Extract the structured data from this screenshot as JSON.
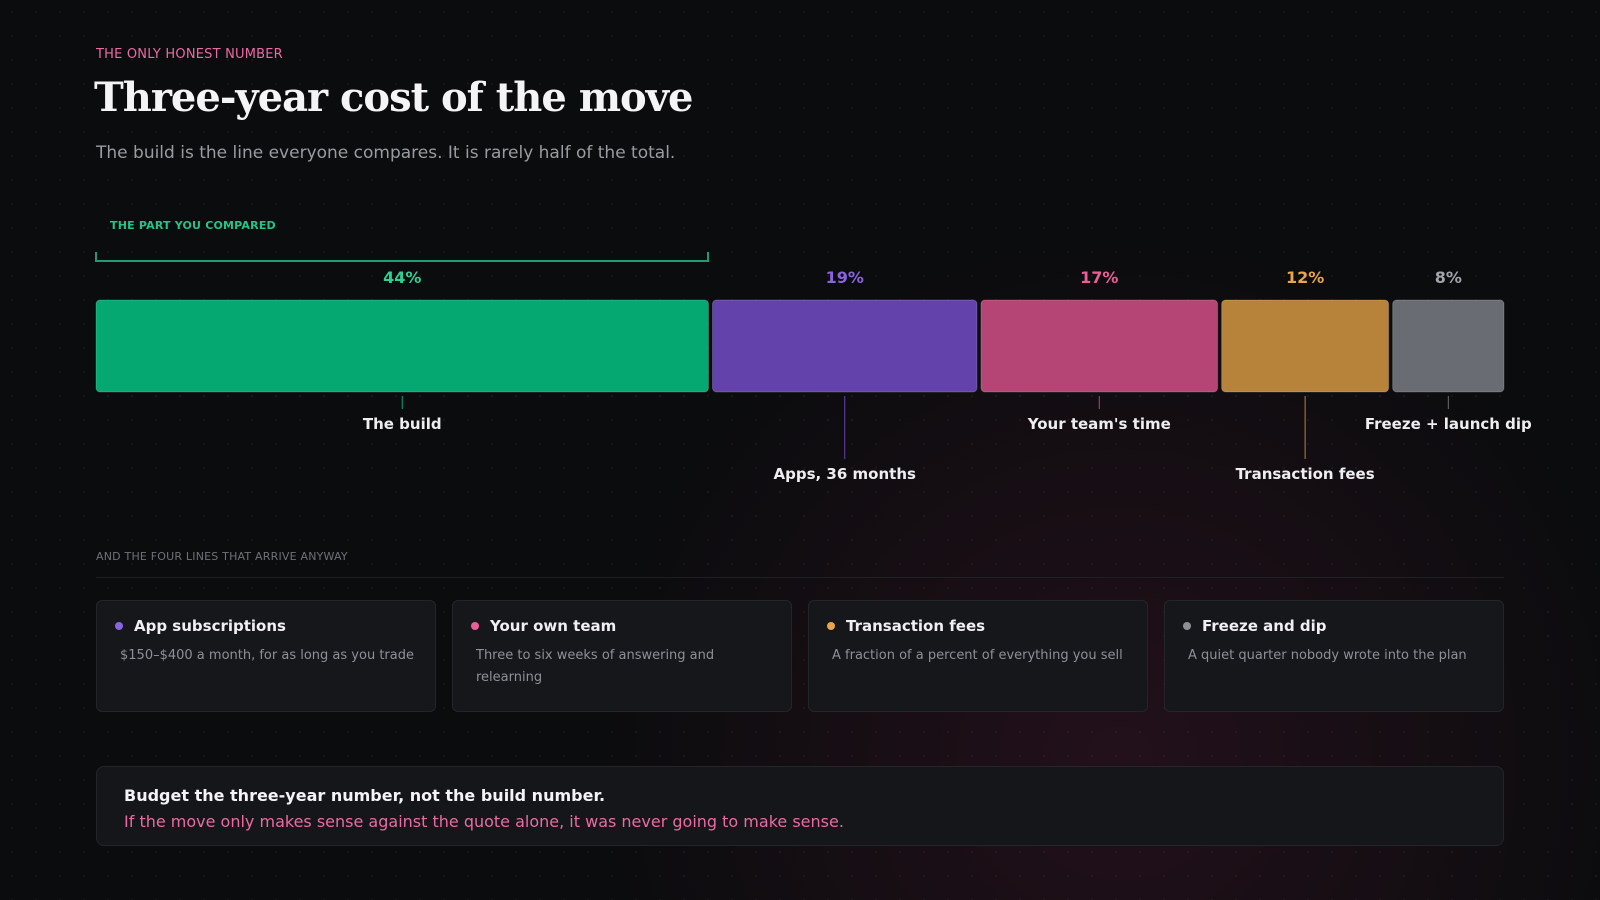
{
  "header": {
    "eyebrow": "THE ONLY HONEST NUMBER",
    "title": "Three-year cost of the move",
    "subtitle": "The build is the line everyone compares. It is rarely half of the total."
  },
  "bracket_label": "THE PART YOU COMPARED",
  "chart_data": {
    "type": "bar",
    "orientation": "horizontal-stacked",
    "unit": "%",
    "categories": [
      "The build",
      "Apps, 36 months",
      "Your team's time",
      "Transaction fees",
      "Freeze + launch dip"
    ],
    "values": [
      44,
      19,
      17,
      12,
      8
    ],
    "value_labels": [
      "44%",
      "19%",
      "17%",
      "12%",
      "8%"
    ],
    "colors": [
      "#04a870",
      "#6442ab",
      "#b44574",
      "#b7833a",
      "#6a6c73"
    ],
    "label_colors": [
      "#2ed194",
      "#8a63e0",
      "#ec5d98",
      "#eaa54a",
      "#a2a4ab"
    ],
    "annotation": "THE PART YOU COMPARED"
  },
  "section_label": "AND THE FOUR LINES THAT ARRIVE ANYWAY",
  "cards": [
    {
      "title": "App subscriptions",
      "desc": "$150–$400 a month, for as long as you trade",
      "color": "#8a63e0",
      "icon": "bullet-dot-icon"
    },
    {
      "title": "Your own team",
      "desc": "Three to six weeks of answering and relearning",
      "color": "#ec5d98",
      "icon": "bullet-dot-icon"
    },
    {
      "title": "Transaction fees",
      "desc": "A fraction of a percent of everything you sell",
      "color": "#eaa54a",
      "icon": "bullet-dot-icon"
    },
    {
      "title": "Freeze and dip",
      "desc": "A quiet quarter nobody wrote into the plan",
      "color": "#8e9097",
      "icon": "bullet-dot-icon"
    }
  ],
  "callout": {
    "main": "Budget the three-year number, not the build number.",
    "sub": "If the move only makes sense against the quote alone, it was never going to make sense."
  }
}
